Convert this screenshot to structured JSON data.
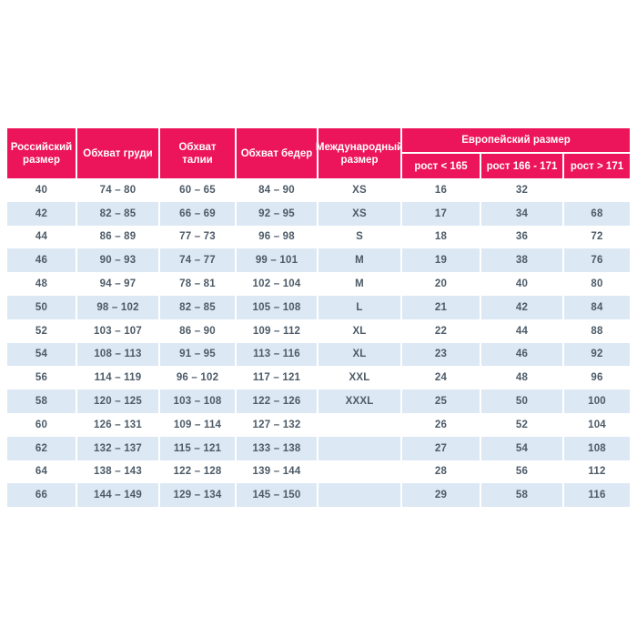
{
  "colors": {
    "header_bg": "#ec145a",
    "header_text": "#ffffff",
    "row_bg": "#ffffff",
    "row_alt_bg": "#dce8f4",
    "cell_text": "#4d5b68"
  },
  "chart_data": {
    "type": "table",
    "title": "",
    "header": {
      "russian_size": "Российский размер",
      "chest": "Обхват груди",
      "waist": "Обхват талии",
      "hips": "Обхват бедер",
      "international_size": "Международный размер",
      "european_size_group": "Европейский размер",
      "height_lt_165": "рост < 165",
      "height_166_171": "рост 166 - 171",
      "height_gt_171": "рост > 171"
    },
    "rows": [
      [
        "40",
        "74 – 80",
        "60 – 65",
        "84 – 90",
        "XS",
        "16",
        "32",
        ""
      ],
      [
        "42",
        "82 – 85",
        "66 – 69",
        "92 – 95",
        "XS",
        "17",
        "34",
        "68"
      ],
      [
        "44",
        "86 – 89",
        "77 – 73",
        "96 – 98",
        "S",
        "18",
        "36",
        "72"
      ],
      [
        "46",
        "90 – 93",
        "74 – 77",
        "99 – 101",
        "M",
        "19",
        "38",
        "76"
      ],
      [
        "48",
        "94 – 97",
        "78 – 81",
        "102 – 104",
        "M",
        "20",
        "40",
        "80"
      ],
      [
        "50",
        "98 – 102",
        "82 – 85",
        "105 – 108",
        "L",
        "21",
        "42",
        "84"
      ],
      [
        "52",
        "103 – 107",
        "86 – 90",
        "109 – 112",
        "XL",
        "22",
        "44",
        "88"
      ],
      [
        "54",
        "108 – 113",
        "91 – 95",
        "113 – 116",
        "XL",
        "23",
        "46",
        "92"
      ],
      [
        "56",
        "114 – 119",
        "96 – 102",
        "117 – 121",
        "XXL",
        "24",
        "48",
        "96"
      ],
      [
        "58",
        "120 – 125",
        "103 – 108",
        "122 – 126",
        "XXXL",
        "25",
        "50",
        "100"
      ],
      [
        "60",
        "126 – 131",
        "109 – 114",
        "127 – 132",
        "",
        "26",
        "52",
        "104"
      ],
      [
        "62",
        "132 – 137",
        "115 – 121",
        "133 – 138",
        "",
        "27",
        "54",
        "108"
      ],
      [
        "64",
        "138 – 143",
        "122 – 128",
        "139 – 144",
        "",
        "28",
        "56",
        "112"
      ],
      [
        "66",
        "144 – 149",
        "129 – 134",
        "145 – 150",
        "",
        "29",
        "58",
        "116"
      ]
    ]
  }
}
